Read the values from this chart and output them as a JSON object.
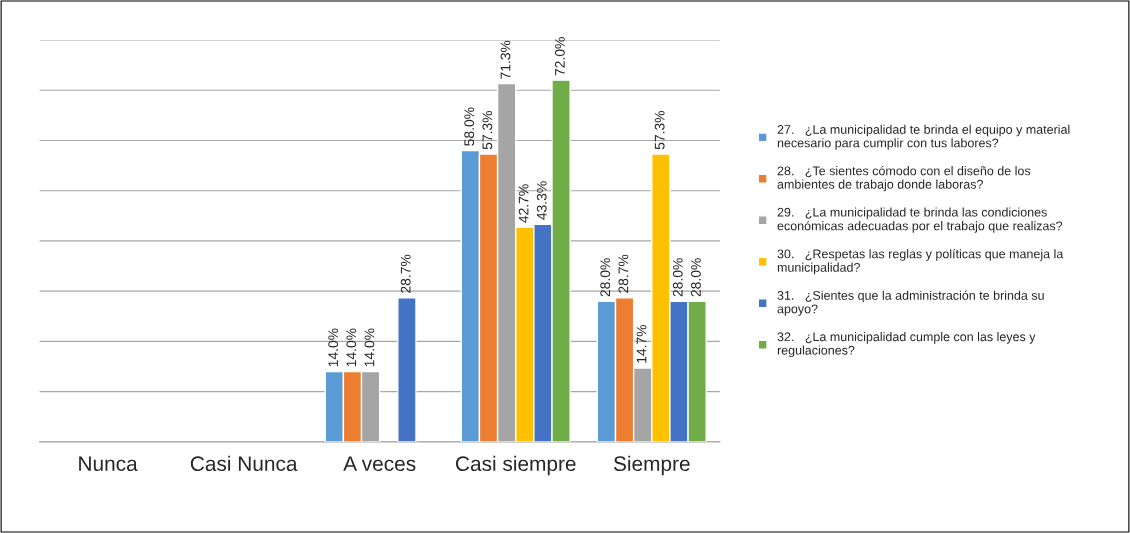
{
  "chart_data": {
    "type": "bar",
    "categories": [
      "Nunca",
      "Casi Nunca",
      "A veces",
      "Casi siempre",
      "Siempre"
    ],
    "series": [
      {
        "name": "27.   ¿La municipalidad te brinda el equipo y material\nnecesario para cumplir con tus labores?",
        "color": "#5b9bd5",
        "values": [
          null,
          null,
          14.0,
          58.0,
          28.0
        ],
        "value_labels": [
          null,
          null,
          "14.0%",
          "58.0%",
          "28.0%"
        ]
      },
      {
        "name": "28.   ¿Te sientes cómodo con el diseño de los\nambientes de trabajo donde laboras?",
        "color": "#ed7d31",
        "values": [
          null,
          null,
          14.0,
          57.3,
          28.7
        ],
        "value_labels": [
          null,
          null,
          "14.0%",
          "57.3%",
          "28.7%"
        ]
      },
      {
        "name": "29.   ¿La municipalidad te brinda las condiciones\neconómicas adecuadas por el trabajo que realizas?",
        "color": "#a5a5a5",
        "values": [
          null,
          null,
          14.0,
          71.3,
          14.7
        ],
        "value_labels": [
          null,
          null,
          "14.0%",
          "71.3%",
          "14.7%"
        ]
      },
      {
        "name": "30.   ¿Respetas las reglas y políticas que maneja la\nmunicipalidad?",
        "color": "#ffc000",
        "values": [
          null,
          null,
          null,
          42.7,
          57.3
        ],
        "value_labels": [
          null,
          null,
          null,
          "42.7%",
          "57.3%"
        ]
      },
      {
        "name": "31.   ¿Sientes que la administración te brinda su\napoyo?",
        "color": "#4472c4",
        "values": [
          null,
          null,
          28.7,
          43.3,
          28.0
        ],
        "value_labels": [
          null,
          null,
          "28.7%",
          "43.3%",
          "28.0%"
        ]
      },
      {
        "name": "32.   ¿La municipalidad cumple con las leyes y\nregulaciones?",
        "color": "#70ad47",
        "values": [
          null,
          null,
          null,
          72.0,
          28.0
        ],
        "value_labels": [
          null,
          null,
          null,
          "72.0%",
          "28.0%"
        ]
      }
    ],
    "ylim": [
      0,
      80
    ],
    "yticks": [
      {
        "value": 0,
        "label": null
      },
      {
        "value": 10,
        "label": null
      },
      {
        "value": 20,
        "label": null
      },
      {
        "value": 30,
        "label": null
      },
      {
        "value": 40,
        "label": null
      },
      {
        "value": 50,
        "label": null
      },
      {
        "value": 60,
        "label": null
      },
      {
        "value": 70,
        "label": null
      },
      {
        "value": 80,
        "label": null
      }
    ],
    "grid": "y",
    "legend": "right",
    "tick_labels": "x"
  }
}
